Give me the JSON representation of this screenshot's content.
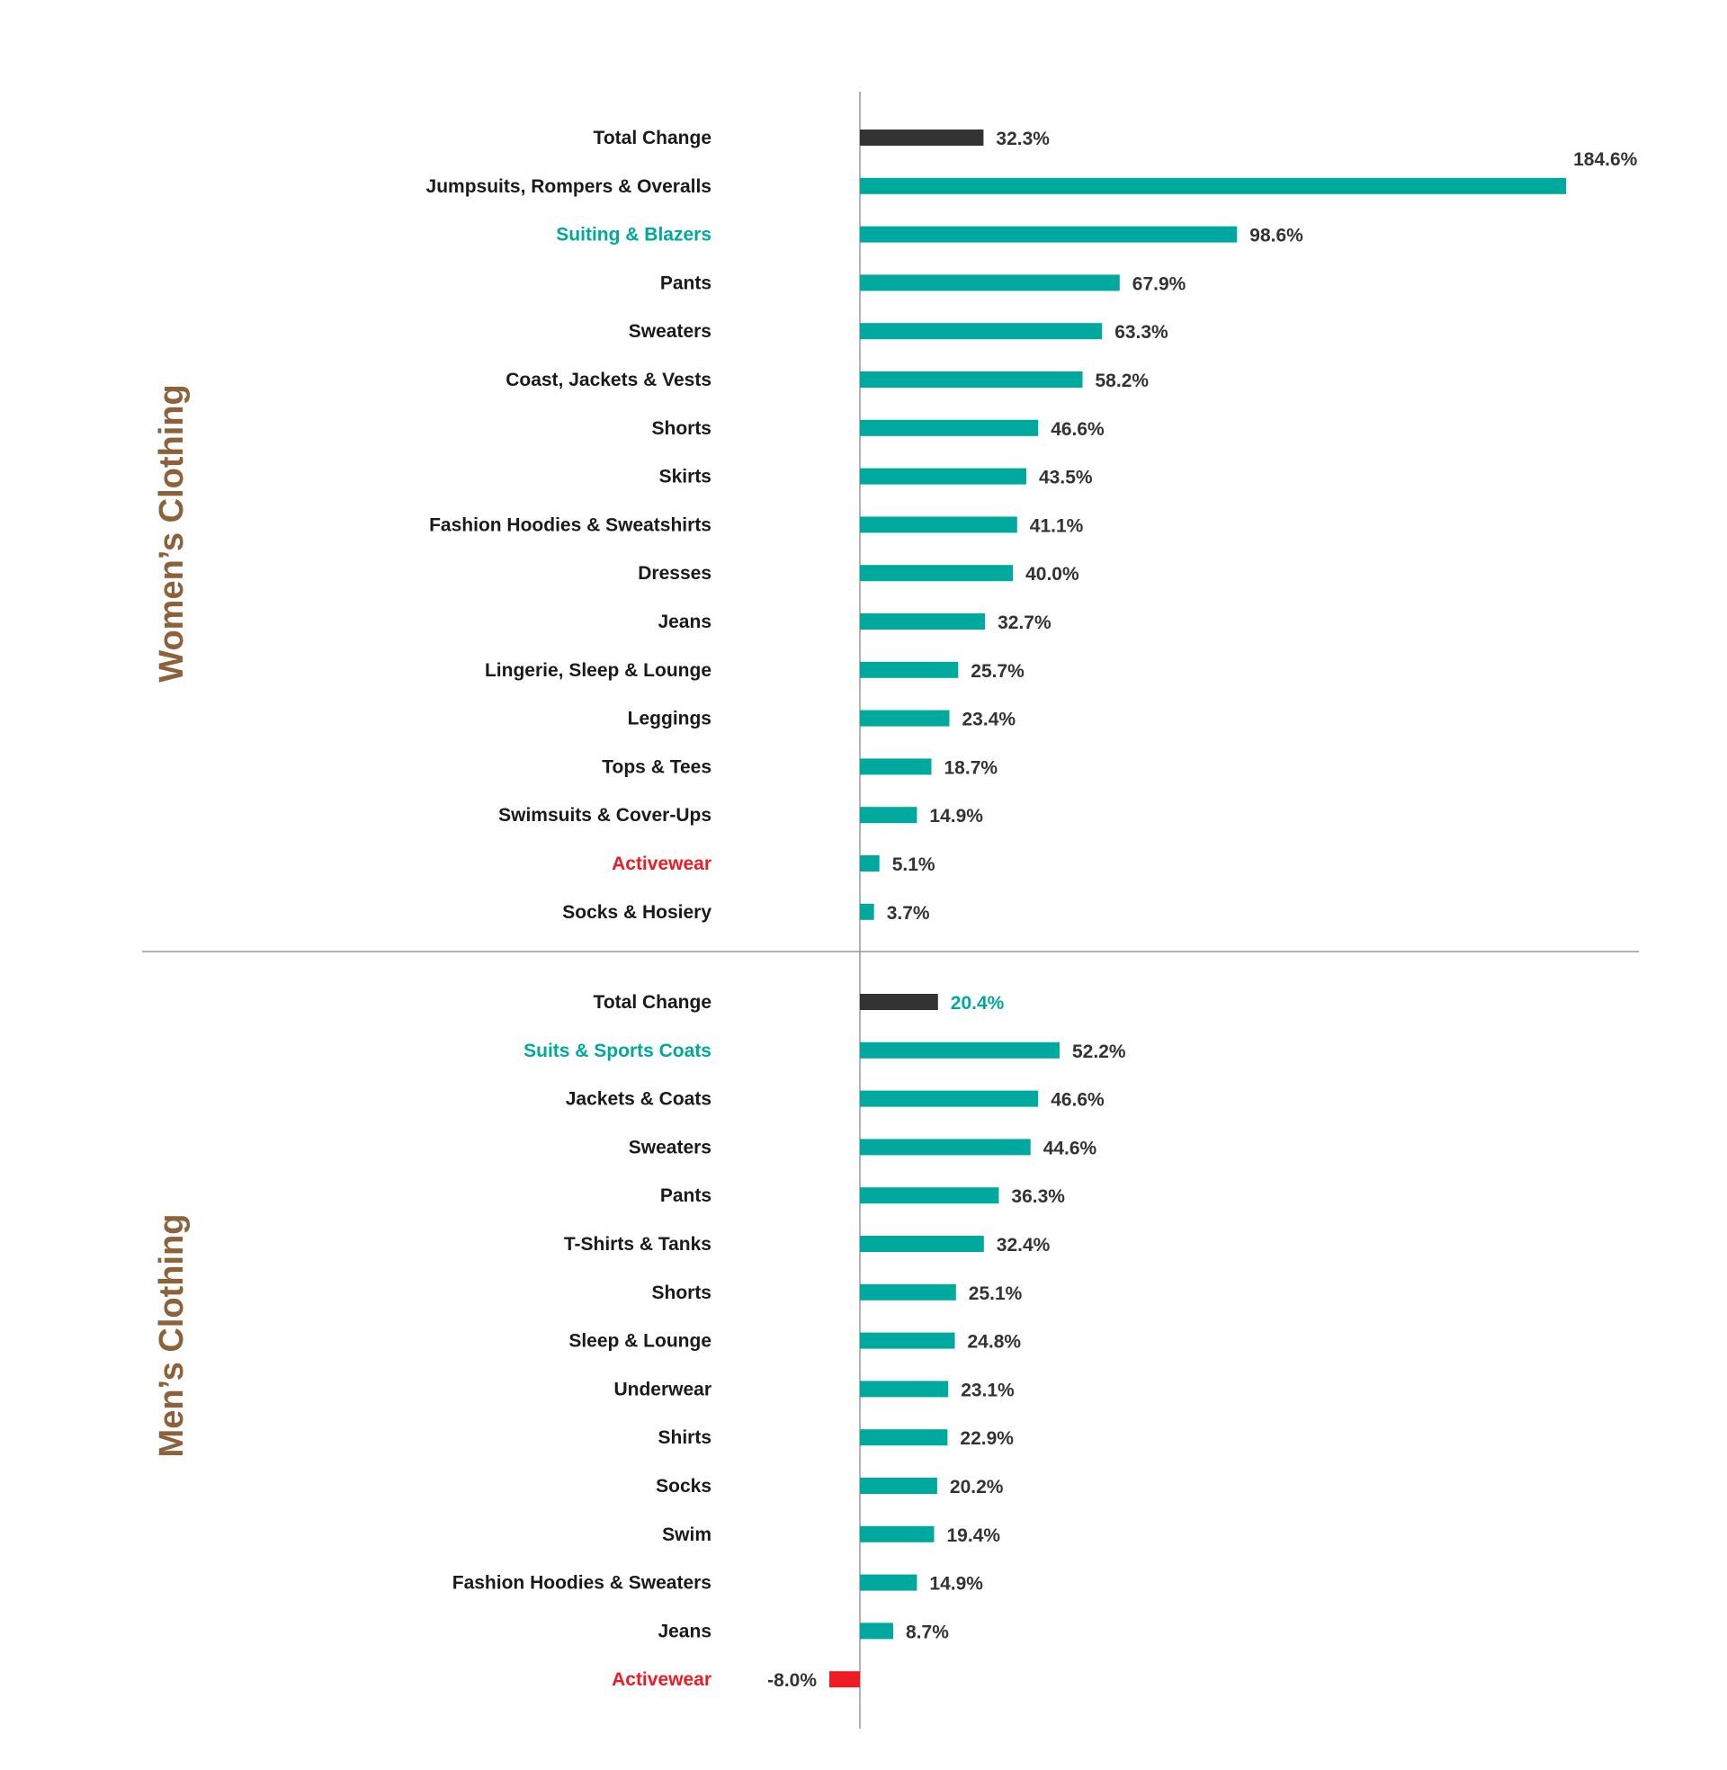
{
  "colors": {
    "bar": "#00a99d",
    "total_bar": "#333333",
    "negative_bar": "#ed1c24",
    "label_default": "#1a1a1a",
    "value_default": "#333333",
    "highlight_teal": "#00a99d",
    "highlight_red": "#ed1c24",
    "section_title": "#8b6239",
    "axis": "#999999"
  },
  "chart_data": [
    {
      "type": "bar",
      "orientation": "horizontal",
      "title": "Women’s Clothing",
      "categories": [
        "Total Change",
        "Jumpsuits, Rompers & Overalls",
        "Suiting & Blazers",
        "Pants",
        "Sweaters",
        "Coast, Jackets & Vests",
        "Shorts",
        "Skirts",
        "Fashion Hoodies & Sweatshirts",
        "Dresses",
        "Jeans",
        "Lingerie, Sleep & Lounge",
        "Leggings",
        "Tops & Tees",
        "Swimsuits & Cover-Ups",
        "Activewear",
        "Socks & Hosiery"
      ],
      "values": [
        32.3,
        184.6,
        98.6,
        67.9,
        63.3,
        58.2,
        46.6,
        43.5,
        41.1,
        40.0,
        32.7,
        25.7,
        23.4,
        18.7,
        14.9,
        5.1,
        3.7
      ],
      "value_labels": [
        "32.3%",
        "184.6%",
        "98.6%",
        "67.9%",
        "63.3%",
        "58.2%",
        "46.6%",
        "43.5%",
        "41.1%",
        "40.0%",
        "32.7%",
        "25.7%",
        "23.4%",
        "18.7%",
        "14.9%",
        "5.1%",
        "3.7%"
      ],
      "highlighted_labels": {
        "Suiting & Blazers": "teal",
        "Activewear": "red"
      },
      "total_index": 0
    },
    {
      "type": "bar",
      "orientation": "horizontal",
      "title": "Men’s Clothing",
      "categories": [
        "Total Change",
        "Suits & Sports Coats",
        "Jackets & Coats",
        "Sweaters",
        "Pants",
        "T-Shirts & Tanks",
        "Shorts",
        "Sleep & Lounge",
        "Underwear",
        "Shirts",
        "Socks",
        "Swim",
        "Fashion Hoodies & Sweaters",
        "Jeans",
        "Activewear"
      ],
      "values": [
        20.4,
        52.2,
        46.6,
        44.6,
        36.3,
        32.4,
        25.1,
        24.8,
        23.1,
        22.9,
        20.2,
        19.4,
        14.9,
        8.7,
        -8.0
      ],
      "value_labels": [
        "20.4%",
        "52.2%",
        "46.6%",
        "44.6%",
        "36.3%",
        "32.4%",
        "25.1%",
        "24.8%",
        "23.1%",
        "22.9%",
        "20.2%",
        "19.4%",
        "14.9%",
        "8.7%",
        "-8.0%"
      ],
      "highlighted_labels": {
        "Suits & Sports Coats": "teal",
        "Activewear": "red"
      },
      "highlighted_values": {
        "Total Change": "teal"
      },
      "total_index": 0
    }
  ]
}
